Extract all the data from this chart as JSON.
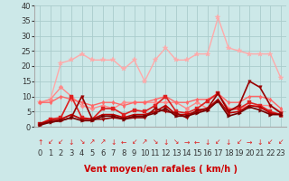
{
  "xlabel": "Vent moyen/en rafales ( km/h )",
  "background_color": "#cce8e8",
  "grid_color": "#aacccc",
  "xlim": [
    -0.5,
    23.5
  ],
  "ylim": [
    0,
    40
  ],
  "yticks": [
    0,
    5,
    10,
    15,
    20,
    25,
    30,
    35,
    40
  ],
  "xticks": [
    0,
    1,
    2,
    3,
    4,
    5,
    6,
    7,
    8,
    9,
    10,
    11,
    12,
    13,
    14,
    15,
    16,
    17,
    18,
    19,
    20,
    21,
    22,
    23
  ],
  "series": [
    {
      "color": "#ffaaaa",
      "lw": 1.0,
      "marker": "*",
      "ms": 4,
      "y": [
        8,
        9,
        21,
        22,
        24,
        22,
        22,
        22,
        19,
        22,
        15,
        22,
        26,
        22,
        22,
        24,
        24,
        36,
        26,
        25,
        24,
        24,
        24,
        16
      ]
    },
    {
      "color": "#ff8888",
      "lw": 1.0,
      "marker": "D",
      "ms": 2.5,
      "y": [
        8,
        9,
        13,
        10,
        7,
        6,
        7,
        6,
        8,
        8,
        8,
        8,
        8,
        8,
        6,
        8,
        6,
        11,
        6,
        6,
        7,
        7,
        7,
        5
      ]
    },
    {
      "color": "#ff6666",
      "lw": 1.0,
      "marker": "d",
      "ms": 2.5,
      "y": [
        8,
        8,
        10,
        9,
        8,
        7,
        8,
        8,
        7,
        8,
        8,
        9,
        10,
        8,
        8,
        9,
        9,
        11,
        8,
        8,
        10,
        10,
        9,
        6
      ]
    },
    {
      "color": "#dd2222",
      "lw": 1.2,
      "marker": "s",
      "ms": 2.5,
      "y": [
        1,
        2.5,
        3,
        10,
        3,
        2.5,
        6,
        6,
        4,
        5.5,
        5,
        7,
        10,
        5,
        4.5,
        6,
        8.5,
        11,
        5.5,
        6,
        8,
        7,
        5,
        4
      ]
    },
    {
      "color": "#bb0000",
      "lw": 1.2,
      "marker": "^",
      "ms": 2.5,
      "y": [
        1,
        2,
        2.5,
        4,
        2.5,
        2.5,
        4,
        4,
        3,
        4,
        4,
        5,
        7,
        4,
        4,
        5,
        6,
        9,
        4.5,
        5,
        7,
        6.5,
        4.5,
        4
      ]
    },
    {
      "color": "#990000",
      "lw": 1.2,
      "marker": "v",
      "ms": 2.5,
      "y": [
        1,
        1.5,
        2,
        3,
        10,
        2.5,
        2.5,
        3,
        2.5,
        3,
        3,
        6,
        5,
        4.5,
        3,
        5.5,
        6,
        11,
        5,
        7,
        15,
        13,
        7,
        4.5
      ]
    },
    {
      "color": "#770000",
      "lw": 1.2,
      "marker": ">",
      "ms": 2.5,
      "y": [
        0.5,
        1.5,
        2,
        3,
        2,
        2,
        3.5,
        3.5,
        2.5,
        3.5,
        3.5,
        4.5,
        6,
        3.5,
        3.5,
        4.5,
        5.5,
        8.5,
        3.5,
        4.5,
        6.5,
        5.5,
        4,
        4
      ]
    }
  ],
  "wind_arrows": [
    "↑",
    "↙",
    "↙",
    "↓",
    "↘",
    "↗",
    "↗",
    "↓",
    "←",
    "↙",
    "↗",
    "↘",
    "↓",
    "↘",
    "→",
    "←",
    "↓",
    "↙",
    "↓",
    "↙",
    "→",
    "↓",
    "↙",
    "↙"
  ],
  "xlabel_color": "#cc0000",
  "xlabel_fontsize": 7,
  "tick_fontsize": 6,
  "arrow_fontsize": 5.5
}
